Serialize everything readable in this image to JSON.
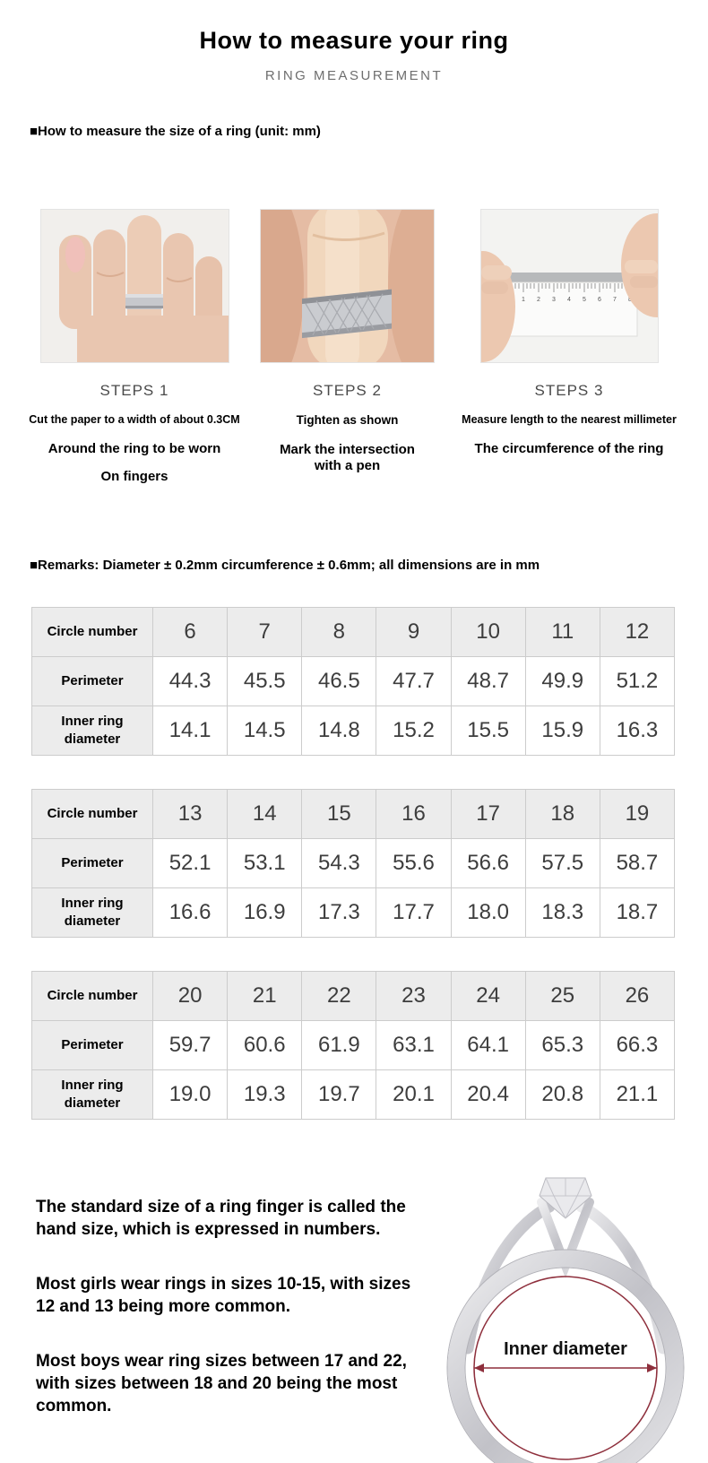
{
  "header": {
    "title": "How to measure your ring",
    "subtitle": "RING MEASUREMENT"
  },
  "section": {
    "heading": "■How to measure the size of a ring (unit: mm)"
  },
  "steps": [
    {
      "label": "STEPS 1",
      "photo": "hand-with-ring-band-on-finger",
      "lines": [
        "Cut the paper to a width of about 0.3CM",
        "Around the ring to be worn",
        "On fingers"
      ]
    },
    {
      "label": "STEPS 2",
      "photo": "paper-strip-tightened-on-finger",
      "lines": [
        "Tighten as shown",
        "Mark the intersection with a pen"
      ]
    },
    {
      "label": "STEPS 3",
      "photo": "measuring-strip-length-with-ruler",
      "lines": [
        "Measure length to the nearest millimeter",
        "The circumference of the ring"
      ]
    }
  ],
  "remarks": "■Remarks: Diameter ± 0.2mm circumference ± 0.6mm; all dimensions are in mm",
  "size_tables": [
    {
      "row_headers": [
        "Circle number",
        "Perimeter",
        "Inner ring diameter"
      ],
      "circle_numbers": [
        "6",
        "7",
        "8",
        "9",
        "10",
        "11",
        "12"
      ],
      "perimeters": [
        "44.3",
        "45.5",
        "46.5",
        "47.7",
        "48.7",
        "49.9",
        "51.2"
      ],
      "inner_diameters": [
        "14.1",
        "14.5",
        "14.8",
        "15.2",
        "15.5",
        "15.9",
        "16.3"
      ]
    },
    {
      "row_headers": [
        "Circle number",
        "Perimeter",
        "Inner ring diameter"
      ],
      "circle_numbers": [
        "13",
        "14",
        "15",
        "16",
        "17",
        "18",
        "19"
      ],
      "perimeters": [
        "52.1",
        "53.1",
        "54.3",
        "55.6",
        "56.6",
        "57.5",
        "58.7"
      ],
      "inner_diameters": [
        "16.6",
        "16.9",
        "17.3",
        "17.7",
        "18.0",
        "18.3",
        "18.7"
      ]
    },
    {
      "row_headers": [
        "Circle number",
        "Perimeter",
        "Inner ring diameter"
      ],
      "circle_numbers": [
        "20",
        "21",
        "22",
        "23",
        "24",
        "25",
        "26"
      ],
      "perimeters": [
        "59.7",
        "60.6",
        "61.9",
        "63.1",
        "64.1",
        "65.3",
        "66.3"
      ],
      "inner_diameters": [
        "19.0",
        "19.3",
        "19.7",
        "20.1",
        "20.4",
        "20.8",
        "21.1"
      ]
    }
  ],
  "notes": [
    "The standard size of a ring finger is called the hand size, which is expressed in numbers.",
    "Most girls wear rings in sizes 10-15, with sizes 12 and 13 being more common.",
    "Most boys wear ring sizes between 17 and 22, with sizes between 18 and 20 being the most common."
  ],
  "ring_diagram": {
    "label": "Inner diameter"
  },
  "colors": {
    "table_header_bg": "#ececec",
    "table_border": "#cccccc",
    "value_text": "#3d3d3d",
    "subtitle_text": "#6e6e6e",
    "diagram_accent": "#8e2f3c",
    "silver": "#c6c6cb",
    "skin": "#e9c6b0"
  }
}
